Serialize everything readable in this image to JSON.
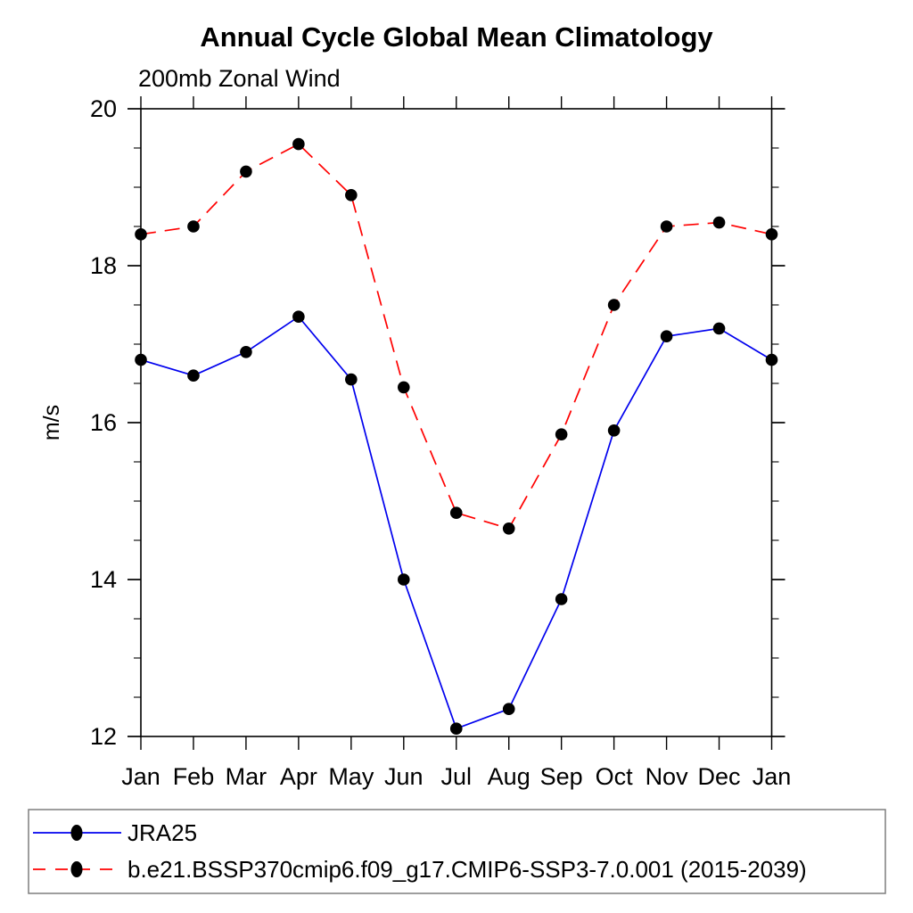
{
  "title": "Annual Cycle Global Mean Climatology",
  "subtitle": "200mb Zonal Wind",
  "y_axis": {
    "label": "m/s",
    "min": 12,
    "max": 20,
    "major_ticks": [
      12,
      14,
      16,
      18,
      20
    ],
    "minor_tick_step": 0.5
  },
  "x_axis": {
    "categories": [
      "Jan",
      "Feb",
      "Mar",
      "Apr",
      "May",
      "Jun",
      "Jul",
      "Aug",
      "Sep",
      "Oct",
      "Nov",
      "Dec",
      "Jan"
    ]
  },
  "colors": {
    "series1_line": "#0000ee",
    "series2_line": "#ff0000",
    "marker": "#000000",
    "axis": "#000000",
    "legend_border": "#7f7f7f",
    "background": "#ffffff"
  },
  "chart_data": {
    "type": "line",
    "title": "Annual Cycle Global Mean Climatology",
    "subtitle": "200mb Zonal Wind",
    "xlabel": "",
    "ylabel": "m/s",
    "ylim": [
      12,
      20
    ],
    "grid": false,
    "legend_position": "bottom-left-box",
    "categories": [
      "Jan",
      "Feb",
      "Mar",
      "Apr",
      "May",
      "Jun",
      "Jul",
      "Aug",
      "Sep",
      "Oct",
      "Nov",
      "Dec",
      "Jan"
    ],
    "series": [
      {
        "name": "JRA25",
        "line_style": "solid",
        "color": "#0000ee",
        "marker": "filled-circle",
        "marker_color": "#000000",
        "values": [
          16.8,
          16.6,
          16.9,
          17.35,
          16.55,
          14.0,
          12.1,
          12.35,
          13.75,
          15.9,
          17.1,
          17.2,
          16.8
        ]
      },
      {
        "name": "b.e21.BSSP370cmip6.f09_g17.CMIP6-SSP3-7.0.001 (2015-2039)",
        "line_style": "dashed",
        "color": "#ff0000",
        "marker": "filled-circle",
        "marker_color": "#000000",
        "values": [
          18.4,
          18.5,
          19.2,
          19.55,
          18.9,
          16.45,
          14.85,
          14.65,
          15.85,
          17.5,
          18.5,
          18.55,
          18.4
        ]
      }
    ]
  }
}
